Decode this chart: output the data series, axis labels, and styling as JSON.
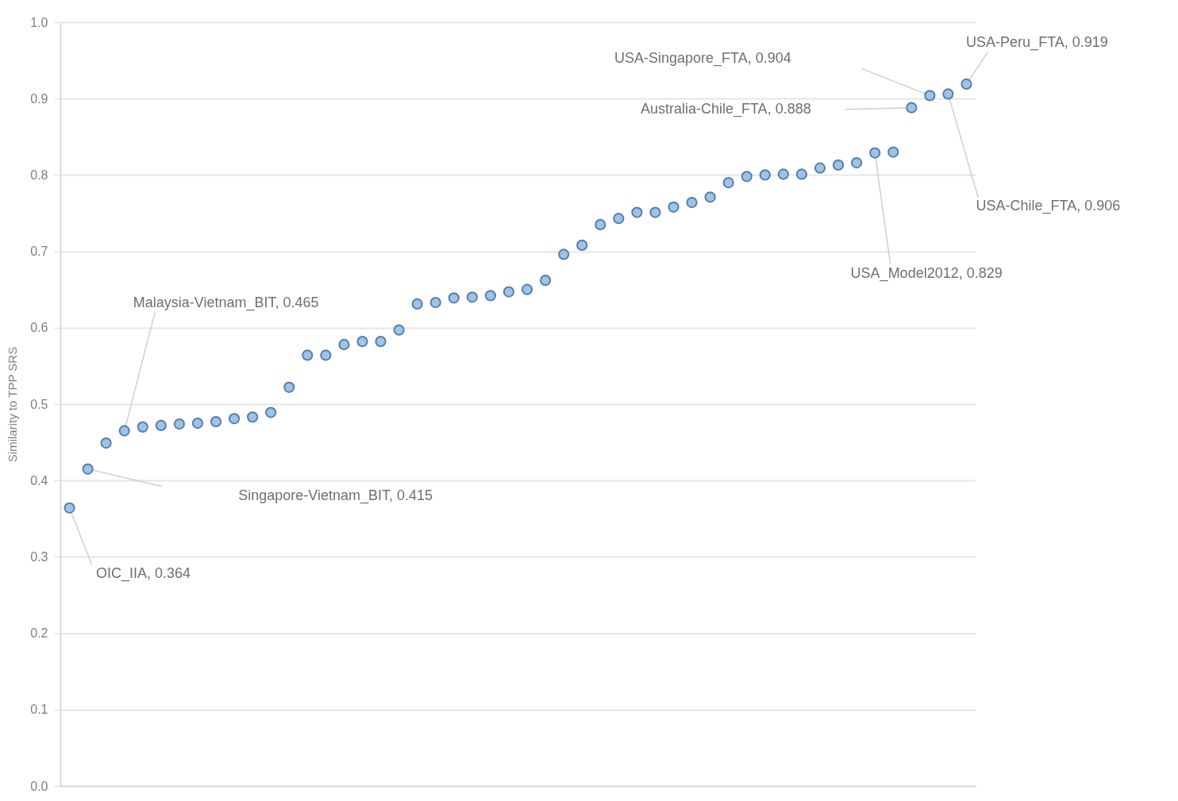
{
  "chart_data": {
    "type": "scatter",
    "ylabel": "Similarity to TPP SRS",
    "categories": [
      null,
      null,
      null,
      null,
      null,
      null,
      null,
      null,
      null,
      null,
      null,
      null,
      null,
      null,
      null,
      null,
      null,
      null,
      null,
      null,
      null,
      null,
      null,
      null,
      null,
      null,
      null,
      null,
      null,
      null,
      null,
      null,
      null,
      null,
      null,
      null,
      null,
      null,
      null,
      null,
      null,
      null,
      null,
      null,
      null,
      null,
      null,
      null,
      null,
      null
    ],
    "series": [
      {
        "color": "#9dc3e6",
        "values": [
          0.364,
          0.415,
          0.449,
          0.465,
          0.47,
          0.472,
          0.474,
          0.475,
          0.477,
          0.481,
          0.483,
          0.489,
          0.522,
          0.564,
          0.564,
          0.578,
          0.582,
          0.582,
          0.597,
          0.631,
          0.633,
          0.639,
          0.64,
          0.642,
          0.647,
          0.65,
          0.662,
          0.696,
          0.708,
          0.735,
          0.743,
          0.751,
          0.751,
          0.758,
          0.764,
          0.771,
          0.79,
          0.798,
          0.8,
          0.801,
          0.801,
          0.809,
          0.813,
          0.816,
          0.829,
          0.83,
          0.888,
          0.904,
          0.906,
          0.919
        ]
      }
    ],
    "ylim": [
      0,
      1
    ],
    "yticks": [
      {
        "value": 0,
        "label": "0.0"
      },
      0.1,
      0.2,
      0.3,
      0.4,
      0.5,
      0.6,
      0.7,
      0.8,
      0.9,
      {
        "value": 1,
        "label": "1.0"
      }
    ],
    "grid": "y",
    "tick_labels": "y",
    "marker": "circle",
    "annotations": [
      "OIC_IIA, 0.364",
      "Singapore-Vietnam_BIT, 0.415",
      "Malaysia-Vietnam_BIT, 0.465",
      "USA_Model2012, 0.829",
      "Australia-Chile_FTA, 0.888",
      "USA-Singapore_FTA, 0.904",
      "USA-Chile_FTA, 0.906",
      "USA-Peru_FTA, 0.919"
    ]
  }
}
